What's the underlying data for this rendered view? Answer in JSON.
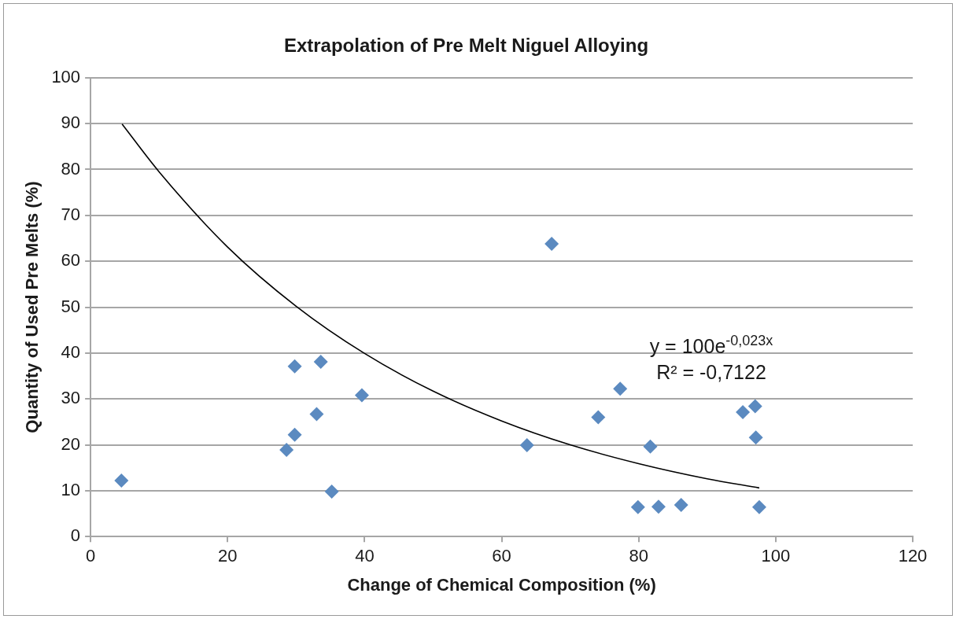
{
  "chart_data": {
    "type": "scatter",
    "title": "Extrapolation of Pre Melt Niguel Alloying",
    "xlabel": "Change of Chemical Composition (%)",
    "ylabel": "Quantity of Used Pre Melts (%)",
    "series": [
      {
        "color": "#5b8ac0",
        "x": [
          4.5,
          29.8,
          33.6,
          39.6,
          33.0,
          29.8,
          28.6,
          35.2,
          67.3,
          63.7,
          77.3,
          74.1,
          81.7,
          79.9,
          82.9,
          86.2,
          95.2,
          97.0,
          97.1,
          97.6
        ],
        "values": [
          12.2,
          37.1,
          38.1,
          30.8,
          26.7,
          22.2,
          18.9,
          9.8,
          63.8,
          19.9,
          32.2,
          26.0,
          19.6,
          6.4,
          6.5,
          6.9,
          27.1,
          28.4,
          21.6,
          6.4
        ]
      },
      {
        "type": "line",
        "color": "#000000",
        "marker": "none",
        "x": [
          4.6,
          10,
          20,
          30,
          40,
          50,
          60,
          70,
          80,
          90,
          97.6
        ],
        "values": [
          89.9,
          79.5,
          63.1,
          50.2,
          39.9,
          31.7,
          25.2,
          20.0,
          15.9,
          12.6,
          10.6
        ]
      }
    ],
    "annotations": [
      "y = 100e$^{-0,023x}$",
      "R² = -0,7122"
    ],
    "xlim": [
      0,
      120
    ],
    "xticks": [
      0,
      20,
      40,
      60,
      80,
      100,
      120
    ],
    "ylim": [
      0,
      100
    ],
    "yticks": [
      0,
      10,
      20,
      30,
      40,
      50,
      60,
      70,
      80,
      90,
      100
    ],
    "grid": "y",
    "legend": false,
    "marker": "diamond",
    "line_style": "solid"
  }
}
